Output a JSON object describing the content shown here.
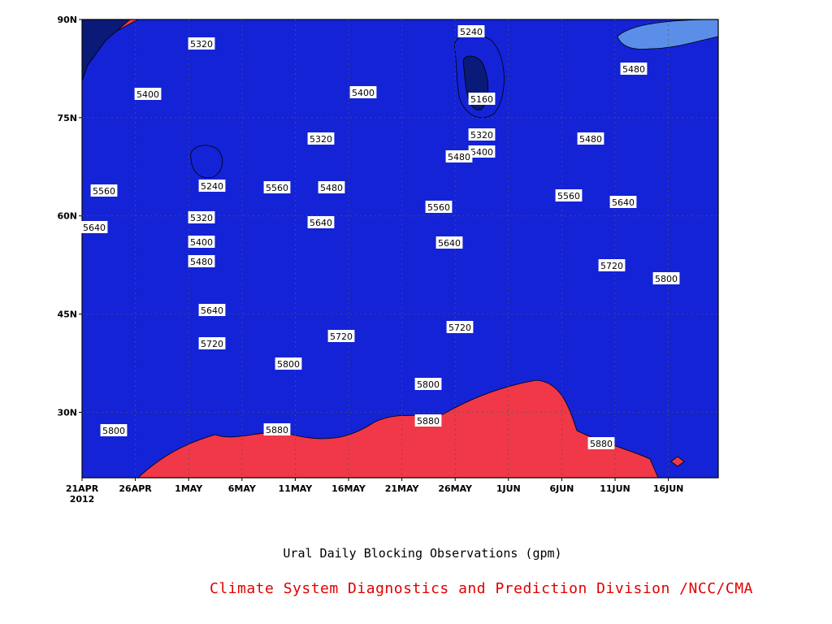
{
  "chart_data": {
    "type": "heatmap",
    "subtype": "filled-contour",
    "xlabel": "",
    "ylabel": "",
    "x_ticks": [
      "21APR",
      "26APR",
      "1MAY",
      "6MAY",
      "11MAY",
      "16MAY",
      "21MAY",
      "26MAY",
      "1JUN",
      "6JUN",
      "11JUN",
      "16JUN"
    ],
    "x_year_label": "2012",
    "y_ticks": [
      "30N",
      "45N",
      "60N",
      "75N",
      "90N"
    ],
    "xlim": [
      "21APR2012",
      "22JUN2012"
    ],
    "ylim": [
      "20N",
      "90N"
    ],
    "grid": true,
    "contour_levels": [
      5160,
      5240,
      5320,
      5400,
      5480,
      5560,
      5640,
      5720,
      5800,
      5880
    ],
    "level_colors": [
      "#0a1a78",
      "#1423d6",
      "#4a4ce6",
      "#5a8ee8",
      "#5ab9f7",
      "#fafa8c",
      "#fbdc9a",
      "#fba06a",
      "#f97447",
      "#f46a74",
      "#f03848"
    ],
    "contour_labels": [
      {
        "value": "5320"
      },
      {
        "value": "5400"
      },
      {
        "value": "5560"
      },
      {
        "value": "5640"
      },
      {
        "value": "5240"
      },
      {
        "value": "5320"
      },
      {
        "value": "5400"
      },
      {
        "value": "5480"
      },
      {
        "value": "5640"
      },
      {
        "value": "5720"
      },
      {
        "value": "5800"
      },
      {
        "value": "5880"
      },
      {
        "value": "5560"
      },
      {
        "value": "5320"
      },
      {
        "value": "5480"
      },
      {
        "value": "5640"
      },
      {
        "value": "5400"
      },
      {
        "value": "5720"
      },
      {
        "value": "5560"
      },
      {
        "value": "5240"
      },
      {
        "value": "5160"
      },
      {
        "value": "5320"
      },
      {
        "value": "5400"
      },
      {
        "value": "5480"
      },
      {
        "value": "5640"
      },
      {
        "value": "5720"
      },
      {
        "value": "5800"
      },
      {
        "value": "5880"
      },
      {
        "value": "5480"
      },
      {
        "value": "5480"
      },
      {
        "value": "5560"
      },
      {
        "value": "5640"
      },
      {
        "value": "5720"
      },
      {
        "value": "5800"
      },
      {
        "value": "5880"
      },
      {
        "value": "5800"
      }
    ]
  },
  "caption": {
    "title": "Ural Daily Blocking Observations (gpm)",
    "credit": "Climate System Diagnostics and Prediction Division /NCC/CMA"
  }
}
